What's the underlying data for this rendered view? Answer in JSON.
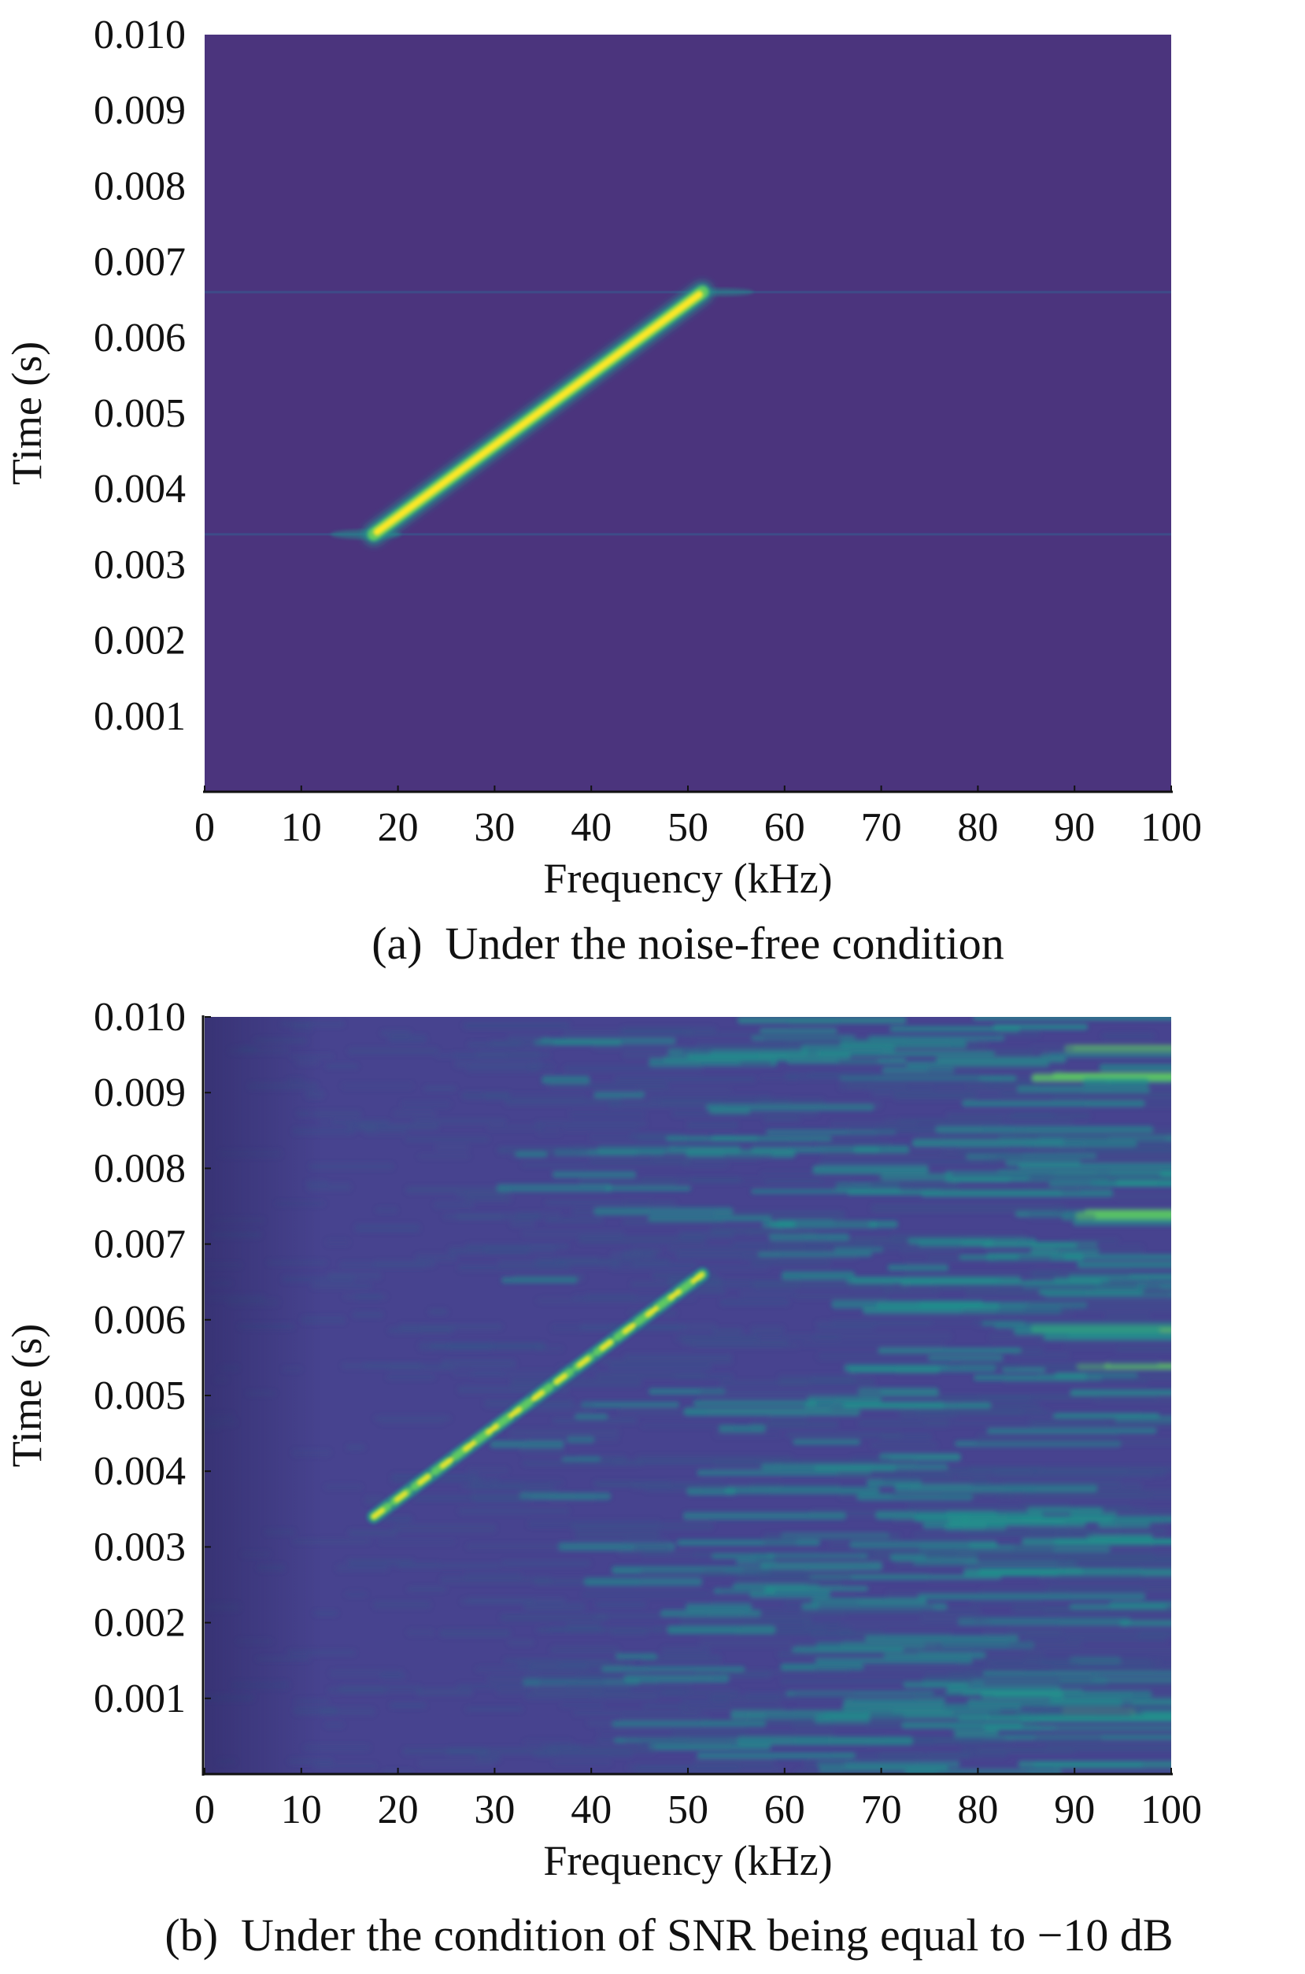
{
  "chart_data": [
    {
      "type": "heatmap",
      "caption": "(a)  Under the noise-free condition",
      "xlabel": "Frequency (kHz)",
      "ylabel": "Time (s)",
      "xlim": [
        0,
        100
      ],
      "ylim": [
        0,
        0.01
      ],
      "xticks": [
        "0",
        "10",
        "20",
        "30",
        "40",
        "50",
        "60",
        "70",
        "80",
        "90",
        "100"
      ],
      "yticks": [
        "0.001",
        "0.002",
        "0.003",
        "0.004",
        "0.005",
        "0.006",
        "0.007",
        "0.008",
        "0.009",
        "0.010"
      ],
      "colormap": [
        "#440154",
        "#3b528b",
        "#21918c",
        "#5ec962",
        "#fde725"
      ],
      "background": "#4b347d",
      "chirp": {
        "f_start_khz": 17.5,
        "t_start_s": 0.0034,
        "f_end_khz": 51.5,
        "t_end_s": 0.0066
      },
      "residual_lines_s": [
        0.0034,
        0.0066
      ],
      "noise": "none"
    },
    {
      "type": "heatmap",
      "caption": "(b)  Under the condition of SNR being equal to −10 dB",
      "xlabel": "Frequency (kHz)",
      "ylabel": "Time (s)",
      "xlim": [
        0,
        100
      ],
      "ylim": [
        0,
        0.01
      ],
      "xticks": [
        "0",
        "10",
        "20",
        "30",
        "40",
        "50",
        "60",
        "70",
        "80",
        "90",
        "100"
      ],
      "yticks": [
        "0.001",
        "0.002",
        "0.003",
        "0.004",
        "0.005",
        "0.006",
        "0.007",
        "0.008",
        "0.009",
        "0.010"
      ],
      "colormap": [
        "#440154",
        "#3b528b",
        "#21918c",
        "#5ec962",
        "#fde725"
      ],
      "background": "#47438f",
      "chirp": {
        "f_start_khz": 17.5,
        "t_start_s": 0.0034,
        "f_end_khz": 51.5,
        "t_end_s": 0.0066
      },
      "snr_db": -10,
      "noise": "increasing with frequency"
    }
  ]
}
